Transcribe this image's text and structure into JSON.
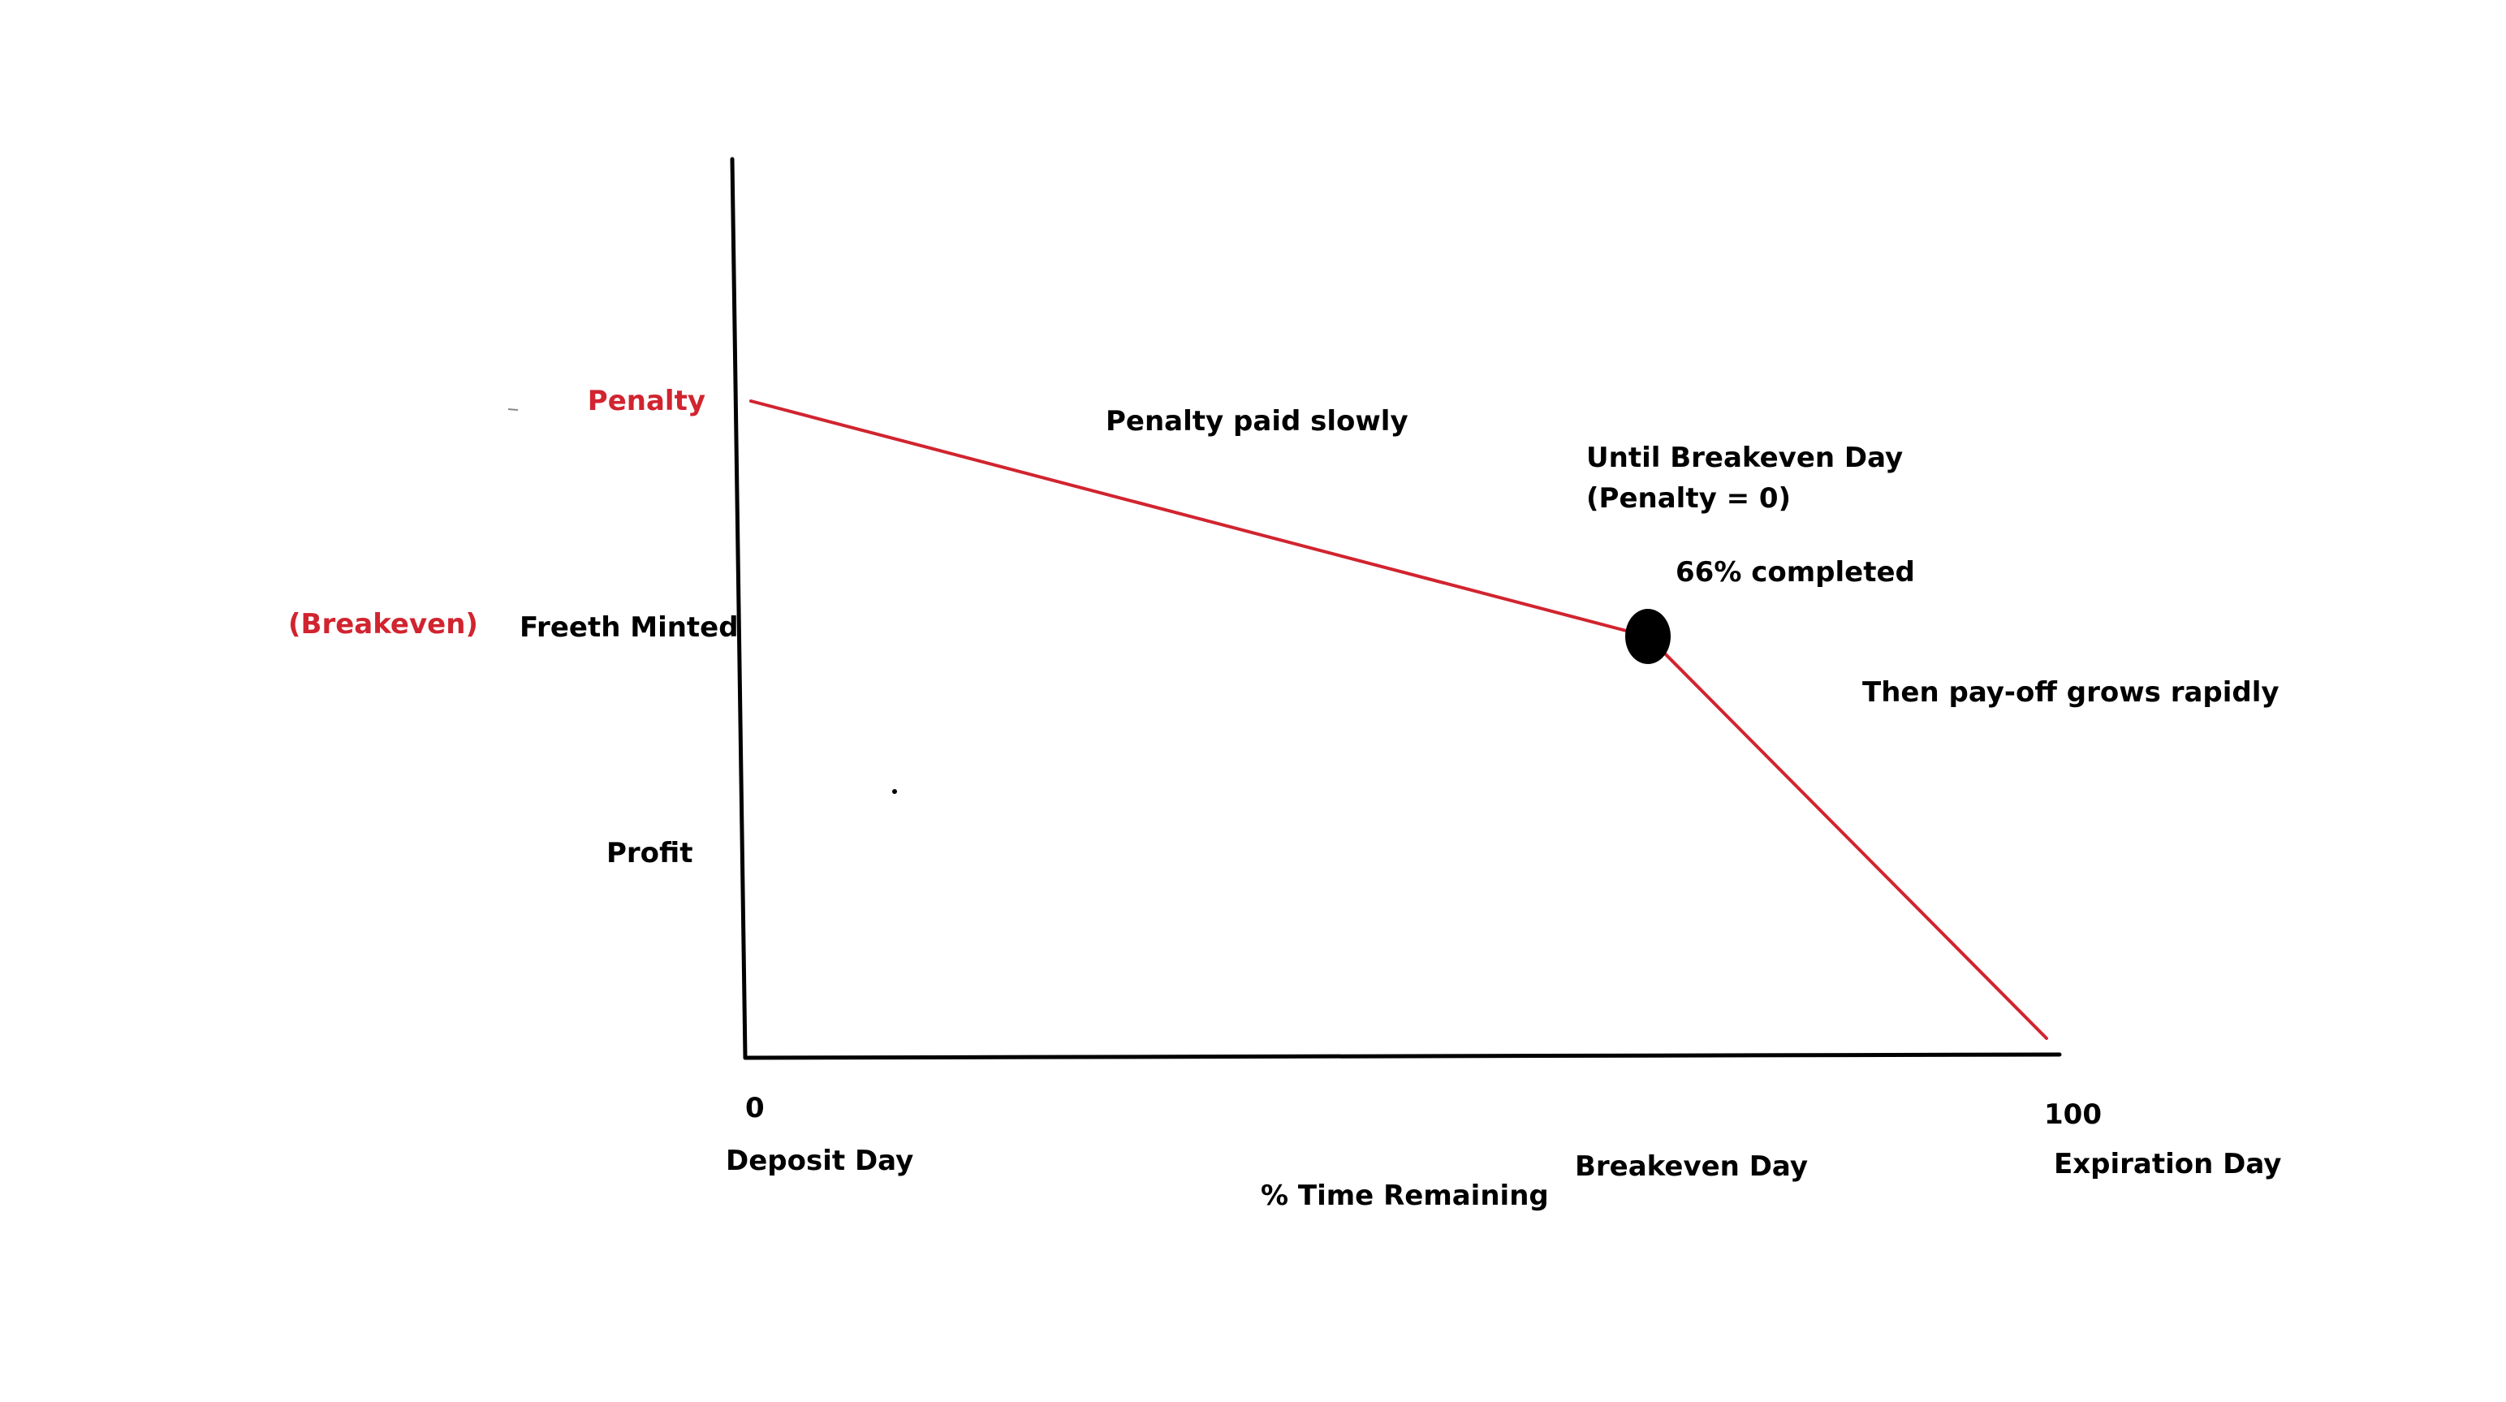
{
  "colors": {
    "axis": "#000000",
    "curve": "#d1242f",
    "marker": "#000000",
    "text": "#000000",
    "accent_text": "#d1242f"
  },
  "labels": {
    "y_penalty": "Penalty",
    "y_breakeven": "(Breakeven)",
    "y_freeth_minted": "Freeth Minted",
    "y_profit": "Profit",
    "x_zero": "0",
    "x_hundred": "100",
    "x_deposit_day": "Deposit Day",
    "x_breakeven_day": "Breakeven Day",
    "x_expiration_day": "Expiration Day",
    "x_axis_title": "%  Time Remaining"
  },
  "annotations": {
    "penalty_paid_slowly": "Penalty paid slowly",
    "until_breakeven_line1": "Until Breakeven Day",
    "until_breakeven_line2": "(Penalty = 0)",
    "completed": "66% completed",
    "payoff_grows": "Then pay-off grows rapidly"
  }
}
